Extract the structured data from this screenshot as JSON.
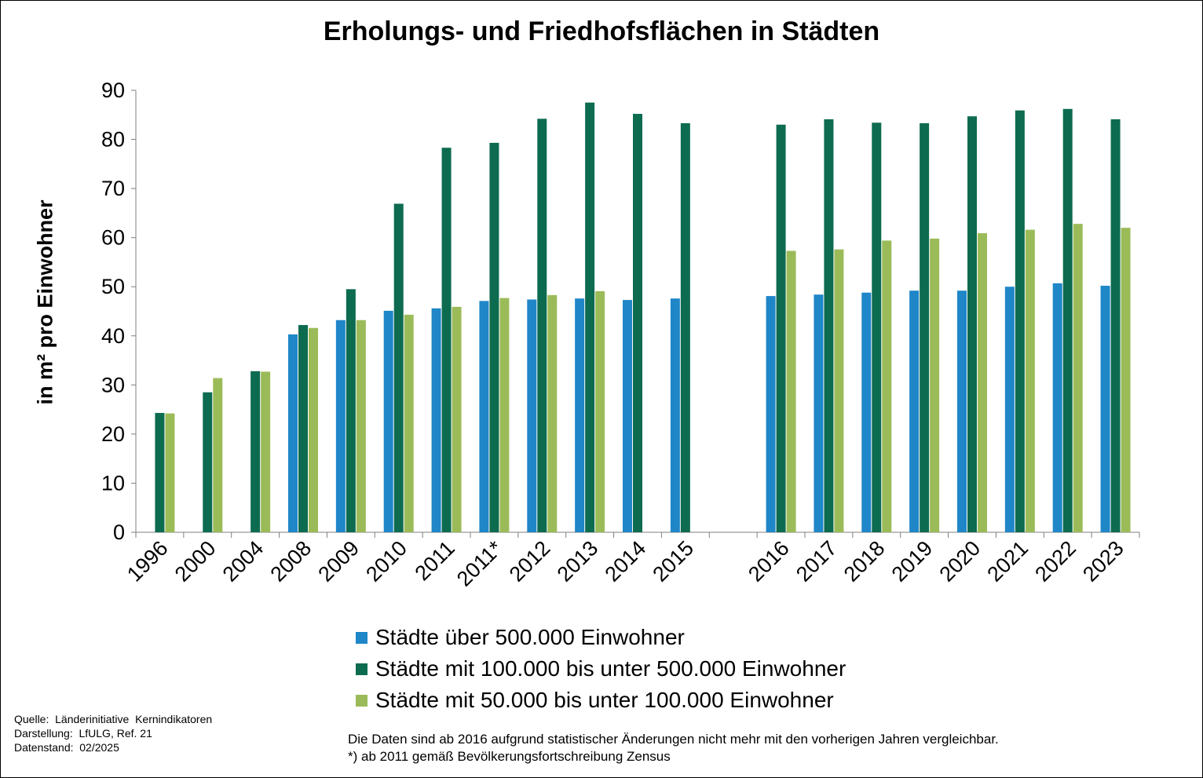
{
  "chart_data": {
    "type": "bar",
    "title": "Erholungs- und Friedhofsflächen in Städten",
    "ylabel": "in m² pro Einwohner",
    "xlabel": "",
    "ylim": [
      0,
      90
    ],
    "yticks": [
      0,
      10,
      20,
      30,
      40,
      50,
      60,
      70,
      80,
      90
    ],
    "grid": false,
    "legend_position": "bottom",
    "categories": [
      "1996",
      "2000",
      "2004",
      "2008",
      "2009",
      "2010",
      "2011",
      "2011*",
      "2012",
      "2013",
      "2014",
      "2015",
      "",
      "2016",
      "2017",
      "2018",
      "2019",
      "2020",
      "2021",
      "2022",
      "2023"
    ],
    "series": [
      {
        "name": "Städte über 500.000 Einwohner",
        "color": "#1f86c8",
        "values": [
          null,
          null,
          null,
          40.3,
          43.2,
          45.1,
          45.6,
          47.1,
          47.4,
          47.6,
          47.3,
          47.6,
          null,
          48.1,
          48.4,
          48.8,
          49.2,
          49.2,
          50.0,
          50.7,
          50.2
        ]
      },
      {
        "name": "Städte mit 100.000 bis unter 500.000 Einwohner",
        "color": "#0d6b50",
        "values": [
          24.3,
          28.5,
          32.8,
          42.2,
          49.5,
          66.9,
          78.3,
          79.3,
          84.2,
          87.5,
          85.2,
          83.3,
          null,
          83.0,
          84.1,
          83.4,
          83.3,
          84.7,
          85.9,
          86.2,
          84.1
        ]
      },
      {
        "name": "Städte mit 50.000 bis unter 100.000 Einwohner",
        "color": "#9bbb59",
        "values": [
          24.2,
          31.4,
          32.7,
          41.6,
          43.2,
          44.3,
          45.9,
          47.7,
          48.3,
          49.1,
          null,
          null,
          null,
          57.3,
          57.6,
          59.4,
          59.8,
          60.9,
          61.6,
          62.8,
          62.0
        ]
      }
    ]
  },
  "footer": {
    "source": "Quelle:  Länderinitiative  Kernindikatoren\nDarstellung:  LfULG, Ref. 21\nDatenstand:  02/2025",
    "note1": "Die Daten sind ab 2016 aufgrund  statistischer Änderungen  nicht mehr mit den vorherigen Jahren vergleichbar.",
    "note2": "*) ab 2011 gemäß  Bevölkerungsfortschreibung Zensus"
  }
}
